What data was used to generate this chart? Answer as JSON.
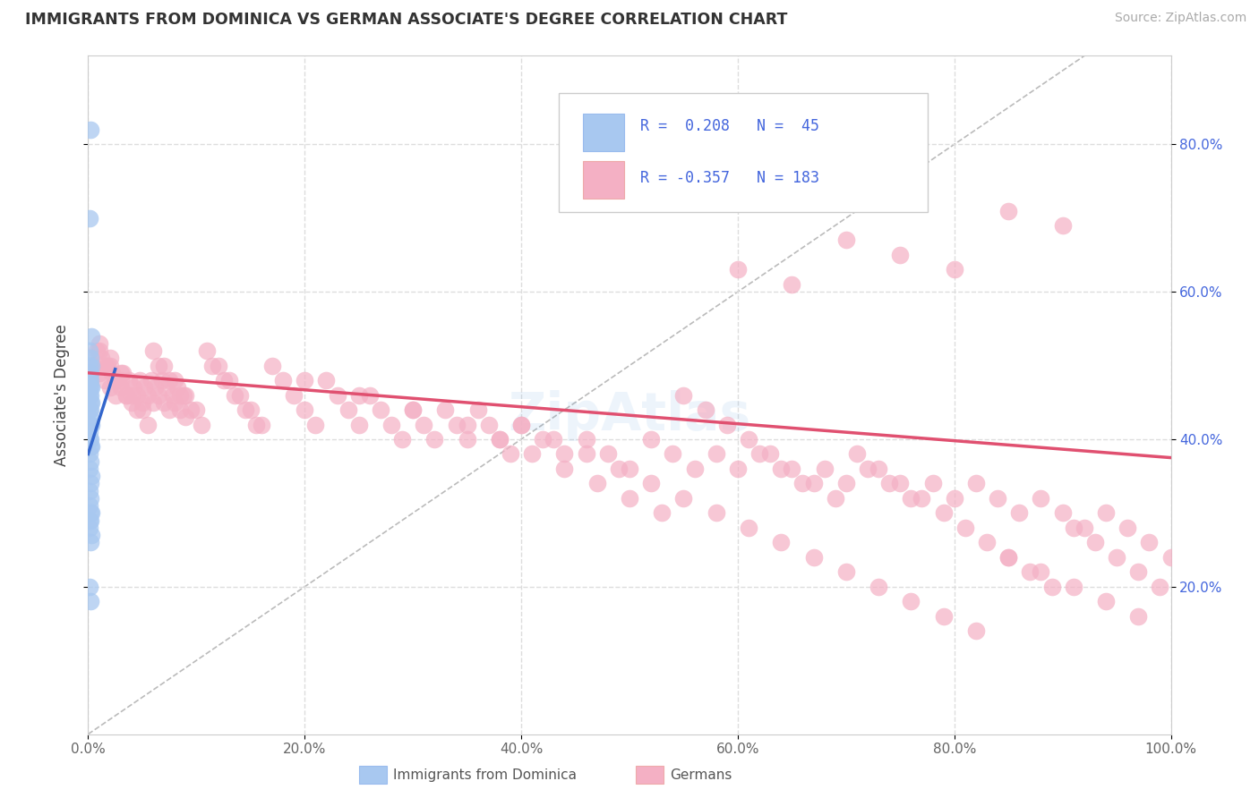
{
  "title": "IMMIGRANTS FROM DOMINICA VS GERMAN ASSOCIATE'S DEGREE CORRELATION CHART",
  "source_text": "Source: ZipAtlas.com",
  "ylabel": "Associate's Degree",
  "xlim": [
    0.0,
    1.0
  ],
  "ylim": [
    0.0,
    0.92
  ],
  "xtick_labels": [
    "0.0%",
    "20.0%",
    "40.0%",
    "60.0%",
    "80.0%",
    "100.0%"
  ],
  "xtick_vals": [
    0.0,
    0.2,
    0.4,
    0.6,
    0.8,
    1.0
  ],
  "ytick_labels": [
    "20.0%",
    "40.0%",
    "60.0%",
    "80.0%"
  ],
  "ytick_vals": [
    0.2,
    0.4,
    0.6,
    0.8
  ],
  "dominica_color": "#a8c8f0",
  "german_color": "#f4b0c4",
  "dominica_trend_color": "#3366cc",
  "german_trend_color": "#e05070",
  "diagonal_color": "#bbbbbb",
  "background_color": "#ffffff",
  "grid_color": "#dddddd",
  "dominica_x": [
    0.002,
    0.001,
    0.003,
    0.001,
    0.002,
    0.001,
    0.003,
    0.002,
    0.001,
    0.002,
    0.001,
    0.003,
    0.002,
    0.001,
    0.002,
    0.001,
    0.003,
    0.002,
    0.001,
    0.002,
    0.001,
    0.003,
    0.002,
    0.001,
    0.002,
    0.001,
    0.003,
    0.002,
    0.001,
    0.002,
    0.001,
    0.003,
    0.002,
    0.001,
    0.002,
    0.001,
    0.003,
    0.002,
    0.001,
    0.002,
    0.001,
    0.003,
    0.002,
    0.001,
    0.002
  ],
  "dominica_y": [
    0.82,
    0.7,
    0.54,
    0.52,
    0.51,
    0.5,
    0.5,
    0.49,
    0.49,
    0.48,
    0.48,
    0.47,
    0.47,
    0.47,
    0.46,
    0.46,
    0.45,
    0.45,
    0.44,
    0.44,
    0.43,
    0.42,
    0.42,
    0.41,
    0.4,
    0.4,
    0.39,
    0.39,
    0.38,
    0.37,
    0.36,
    0.35,
    0.34,
    0.33,
    0.32,
    0.31,
    0.3,
    0.3,
    0.29,
    0.29,
    0.28,
    0.27,
    0.26,
    0.2,
    0.18
  ],
  "german_x": [
    0.005,
    0.008,
    0.01,
    0.012,
    0.015,
    0.018,
    0.02,
    0.022,
    0.025,
    0.028,
    0.03,
    0.032,
    0.035,
    0.038,
    0.04,
    0.042,
    0.045,
    0.048,
    0.05,
    0.052,
    0.055,
    0.058,
    0.06,
    0.062,
    0.065,
    0.068,
    0.07,
    0.072,
    0.075,
    0.078,
    0.08,
    0.082,
    0.085,
    0.088,
    0.09,
    0.015,
    0.025,
    0.035,
    0.045,
    0.055,
    0.065,
    0.075,
    0.085,
    0.095,
    0.105,
    0.115,
    0.125,
    0.135,
    0.145,
    0.155,
    0.01,
    0.02,
    0.03,
    0.04,
    0.05,
    0.06,
    0.07,
    0.08,
    0.09,
    0.1,
    0.11,
    0.12,
    0.13,
    0.14,
    0.15,
    0.16,
    0.17,
    0.18,
    0.19,
    0.2,
    0.21,
    0.22,
    0.23,
    0.24,
    0.25,
    0.26,
    0.27,
    0.28,
    0.29,
    0.3,
    0.31,
    0.32,
    0.33,
    0.34,
    0.35,
    0.36,
    0.37,
    0.38,
    0.39,
    0.4,
    0.42,
    0.44,
    0.46,
    0.48,
    0.5,
    0.52,
    0.54,
    0.56,
    0.58,
    0.6,
    0.62,
    0.64,
    0.66,
    0.68,
    0.7,
    0.72,
    0.74,
    0.76,
    0.78,
    0.8,
    0.82,
    0.84,
    0.86,
    0.88,
    0.9,
    0.92,
    0.94,
    0.96,
    0.98,
    1.0,
    0.55,
    0.57,
    0.59,
    0.61,
    0.63,
    0.65,
    0.67,
    0.69,
    0.71,
    0.73,
    0.75,
    0.77,
    0.79,
    0.81,
    0.83,
    0.85,
    0.87,
    0.89,
    0.91,
    0.93,
    0.95,
    0.97,
    0.99,
    0.6,
    0.65,
    0.7,
    0.75,
    0.8,
    0.85,
    0.9,
    0.4,
    0.43,
    0.46,
    0.49,
    0.52,
    0.55,
    0.58,
    0.61,
    0.64,
    0.67,
    0.7,
    0.73,
    0.76,
    0.79,
    0.82,
    0.85,
    0.88,
    0.91,
    0.94,
    0.97,
    0.2,
    0.25,
    0.3,
    0.35,
    0.38,
    0.41,
    0.44,
    0.47,
    0.5,
    0.53,
    0.01,
    0.02,
    0.03
  ],
  "german_y": [
    0.5,
    0.52,
    0.49,
    0.51,
    0.48,
    0.5,
    0.47,
    0.49,
    0.46,
    0.48,
    0.47,
    0.49,
    0.46,
    0.48,
    0.45,
    0.47,
    0.46,
    0.48,
    0.45,
    0.47,
    0.46,
    0.48,
    0.45,
    0.47,
    0.46,
    0.48,
    0.45,
    0.47,
    0.44,
    0.46,
    0.45,
    0.47,
    0.44,
    0.46,
    0.43,
    0.5,
    0.48,
    0.46,
    0.44,
    0.42,
    0.5,
    0.48,
    0.46,
    0.44,
    0.42,
    0.5,
    0.48,
    0.46,
    0.44,
    0.42,
    0.52,
    0.5,
    0.48,
    0.46,
    0.44,
    0.52,
    0.5,
    0.48,
    0.46,
    0.44,
    0.52,
    0.5,
    0.48,
    0.46,
    0.44,
    0.42,
    0.5,
    0.48,
    0.46,
    0.44,
    0.42,
    0.48,
    0.46,
    0.44,
    0.42,
    0.46,
    0.44,
    0.42,
    0.4,
    0.44,
    0.42,
    0.4,
    0.44,
    0.42,
    0.4,
    0.44,
    0.42,
    0.4,
    0.38,
    0.42,
    0.4,
    0.38,
    0.4,
    0.38,
    0.36,
    0.4,
    0.38,
    0.36,
    0.38,
    0.36,
    0.38,
    0.36,
    0.34,
    0.36,
    0.34,
    0.36,
    0.34,
    0.32,
    0.34,
    0.32,
    0.34,
    0.32,
    0.3,
    0.32,
    0.3,
    0.28,
    0.3,
    0.28,
    0.26,
    0.24,
    0.46,
    0.44,
    0.42,
    0.4,
    0.38,
    0.36,
    0.34,
    0.32,
    0.38,
    0.36,
    0.34,
    0.32,
    0.3,
    0.28,
    0.26,
    0.24,
    0.22,
    0.2,
    0.28,
    0.26,
    0.24,
    0.22,
    0.2,
    0.63,
    0.61,
    0.67,
    0.65,
    0.63,
    0.71,
    0.69,
    0.42,
    0.4,
    0.38,
    0.36,
    0.34,
    0.32,
    0.3,
    0.28,
    0.26,
    0.24,
    0.22,
    0.2,
    0.18,
    0.16,
    0.14,
    0.24,
    0.22,
    0.2,
    0.18,
    0.16,
    0.48,
    0.46,
    0.44,
    0.42,
    0.4,
    0.38,
    0.36,
    0.34,
    0.32,
    0.3,
    0.53,
    0.51,
    0.49
  ],
  "dominica_trend_x": [
    0.0,
    0.025
  ],
  "dominica_trend_y": [
    0.38,
    0.495
  ],
  "german_trend_x": [
    0.0,
    1.0
  ],
  "german_trend_y": [
    0.49,
    0.375
  ]
}
